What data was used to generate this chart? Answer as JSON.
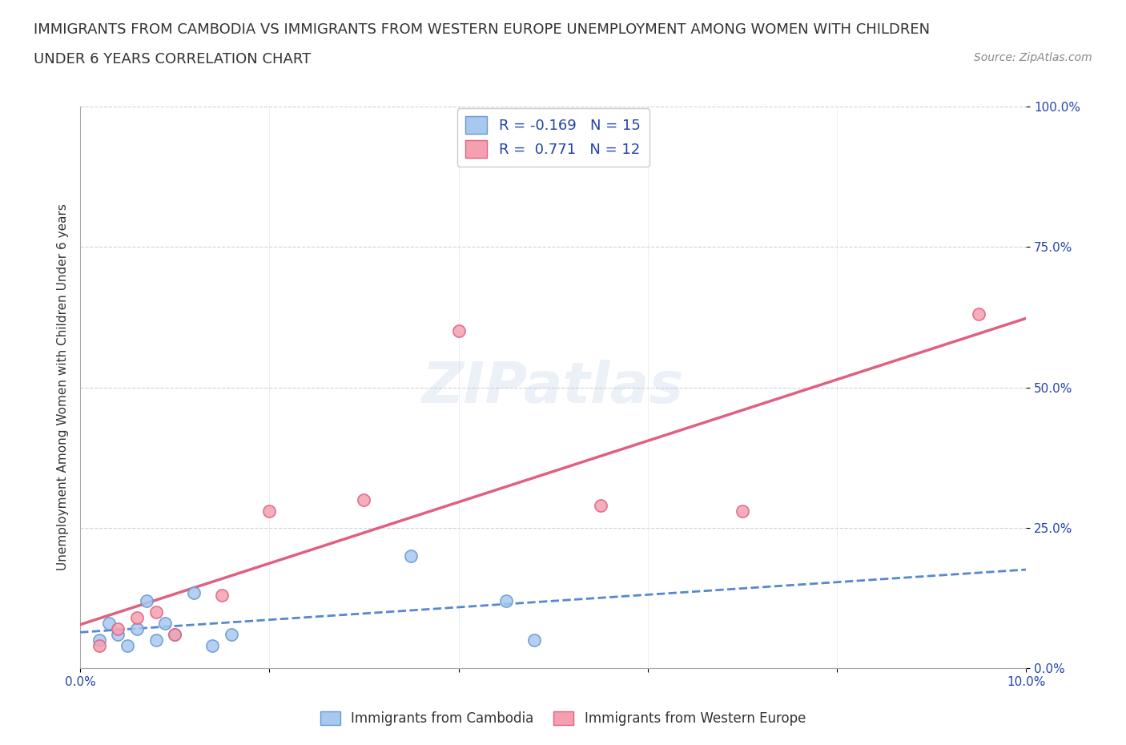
{
  "title_line1": "IMMIGRANTS FROM CAMBODIA VS IMMIGRANTS FROM WESTERN EUROPE UNEMPLOYMENT AMONG WOMEN WITH CHILDREN",
  "title_line2": "UNDER 6 YEARS CORRELATION CHART",
  "source": "Source: ZipAtlas.com",
  "ylabel": "Unemployment Among Women with Children Under 6 years",
  "xlim": [
    0,
    0.1
  ],
  "ylim": [
    0,
    1.0
  ],
  "xticks": [
    0.0,
    0.02,
    0.04,
    0.06,
    0.08,
    0.1
  ],
  "xticklabels": [
    "0.0%",
    "",
    "",
    "",
    "",
    "10.0%"
  ],
  "yticks": [
    0.0,
    0.25,
    0.5,
    0.75,
    1.0
  ],
  "yticklabels": [
    "0.0%",
    "25.0%",
    "50.0%",
    "75.0%",
    "100.0%"
  ],
  "cambodia_color": "#a8c8f0",
  "cambodia_edge": "#6699cc",
  "western_color": "#f4a0b0",
  "western_edge": "#e06080",
  "cambodia_R": -0.169,
  "cambodia_N": 15,
  "western_R": 0.771,
  "western_N": 12,
  "cambodia_line_color": "#5588cc",
  "western_line_color": "#e06080",
  "legend_R_color": "#2244aa",
  "background": "#ffffff",
  "watermark": "ZIPatlas",
  "cambodia_x": [
    0.002,
    0.003,
    0.004,
    0.005,
    0.006,
    0.007,
    0.008,
    0.009,
    0.01,
    0.012,
    0.014,
    0.016,
    0.035,
    0.045,
    0.048
  ],
  "cambodia_y": [
    0.05,
    0.08,
    0.06,
    0.04,
    0.07,
    0.12,
    0.05,
    0.08,
    0.06,
    0.135,
    0.04,
    0.06,
    0.2,
    0.12,
    0.05
  ],
  "western_x": [
    0.002,
    0.004,
    0.006,
    0.008,
    0.01,
    0.015,
    0.02,
    0.03,
    0.04,
    0.055,
    0.07,
    0.095
  ],
  "western_y": [
    0.04,
    0.07,
    0.09,
    0.1,
    0.06,
    0.13,
    0.28,
    0.3,
    0.6,
    0.29,
    0.28,
    0.63
  ]
}
